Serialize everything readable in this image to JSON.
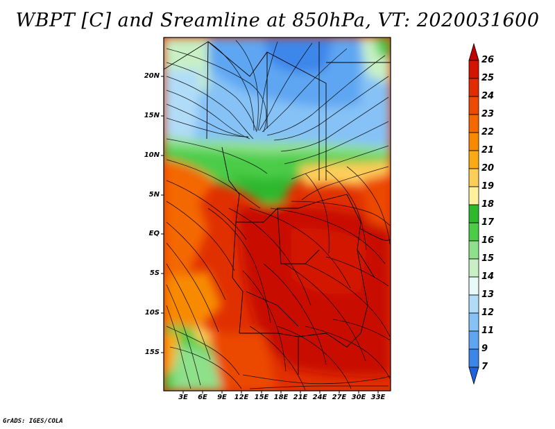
{
  "title": "WBPT [C] and Sreamline at 850hPa, VT: 2020031600",
  "credit": "GrADS: IGES/COLA",
  "map": {
    "field": "Wet-bulb potential temperature",
    "units": "C",
    "level": "850hPa",
    "valid_time": "2020031600",
    "lat_labels": [
      "20N",
      "15N",
      "10N",
      "5N",
      "EQ",
      "5S",
      "10S",
      "15S"
    ],
    "lon_labels": [
      "3E",
      "6E",
      "9E",
      "12E",
      "15E",
      "18E",
      "21E",
      "24E",
      "27E",
      "30E",
      "33E"
    ]
  },
  "colorbar": {
    "labels": [
      "26",
      "25",
      "24",
      "23",
      "22",
      "21",
      "20",
      "19",
      "18",
      "17",
      "16",
      "15",
      "14",
      "13",
      "12",
      "11",
      "9",
      "7"
    ],
    "colors": [
      "#c00000",
      "#d31400",
      "#e12c00",
      "#ec4a00",
      "#f46800",
      "#f88a00",
      "#fcaa14",
      "#fdcd5a",
      "#fff0a0",
      "#2eb82e",
      "#4ccc48",
      "#8ee08a",
      "#c8f0c4",
      "#e6fafa",
      "#b0dcf8",
      "#86c2f6",
      "#5ea6f2",
      "#3c86ea",
      "#1e62de"
    ]
  }
}
